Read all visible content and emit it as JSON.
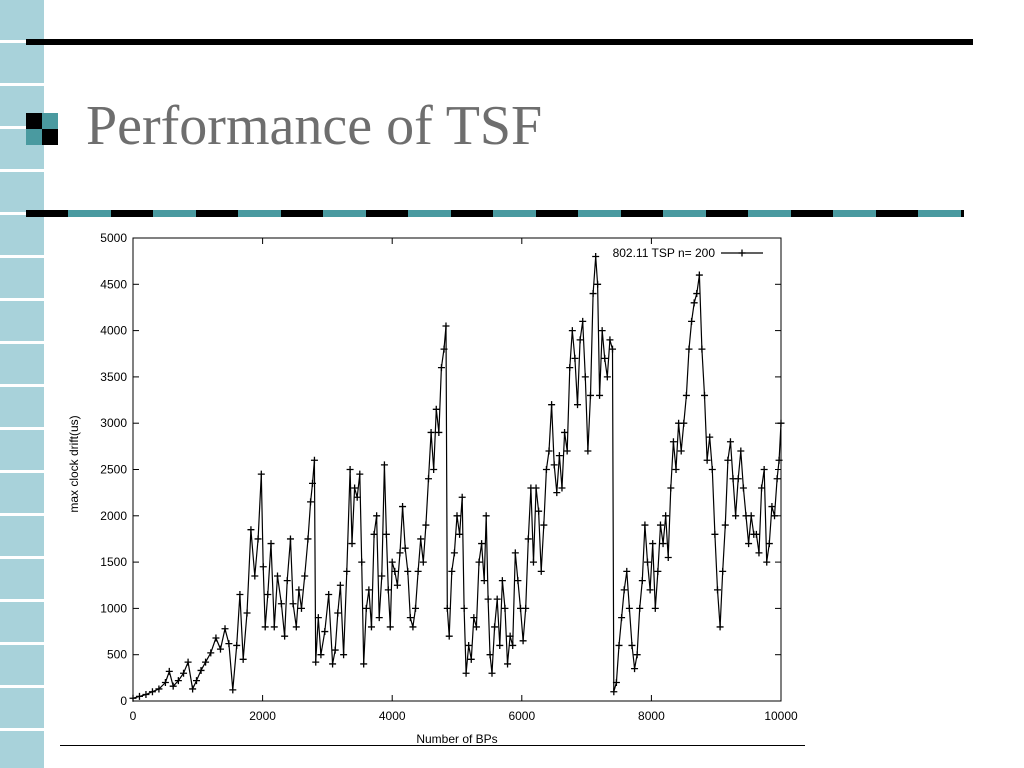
{
  "slide": {
    "title": "Performance of TSF"
  },
  "theme": {
    "accent": "#4a9aa0",
    "stripe_a": "#a8d2da",
    "stripe_b": "#ffffff",
    "rule": "#000000",
    "title_color": "#6e6e6e"
  },
  "chart_data": {
    "type": "line",
    "title": "",
    "xlabel": "Number of BPs",
    "ylabel": "max clock drift(us)",
    "xlim": [
      0,
      10000
    ],
    "ylim": [
      0,
      5000
    ],
    "xticks": [
      0,
      2000,
      4000,
      6000,
      8000,
      10000
    ],
    "yticks": [
      0,
      500,
      1000,
      1500,
      2000,
      2500,
      3000,
      3500,
      4000,
      4500,
      5000
    ],
    "grid": false,
    "legend_position": "top-right",
    "marker": "plus",
    "series": [
      {
        "name": "802.11 TSP n= 200",
        "points": [
          [
            0,
            30
          ],
          [
            100,
            50
          ],
          [
            200,
            70
          ],
          [
            300,
            100
          ],
          [
            400,
            130
          ],
          [
            500,
            200
          ],
          [
            560,
            320
          ],
          [
            620,
            160
          ],
          [
            700,
            220
          ],
          [
            780,
            300
          ],
          [
            850,
            420
          ],
          [
            920,
            130
          ],
          [
            980,
            220
          ],
          [
            1050,
            330
          ],
          [
            1120,
            420
          ],
          [
            1200,
            520
          ],
          [
            1280,
            680
          ],
          [
            1350,
            560
          ],
          [
            1420,
            780
          ],
          [
            1480,
            620
          ],
          [
            1540,
            120
          ],
          [
            1600,
            600
          ],
          [
            1650,
            1150
          ],
          [
            1700,
            450
          ],
          [
            1760,
            950
          ],
          [
            1820,
            1850
          ],
          [
            1880,
            1350
          ],
          [
            1930,
            1750
          ],
          [
            1980,
            2450
          ],
          [
            2010,
            1450
          ],
          [
            2040,
            800
          ],
          [
            2080,
            1150
          ],
          [
            2130,
            1700
          ],
          [
            2180,
            800
          ],
          [
            2230,
            1350
          ],
          [
            2290,
            1050
          ],
          [
            2340,
            700
          ],
          [
            2380,
            1300
          ],
          [
            2430,
            1750
          ],
          [
            2470,
            1050
          ],
          [
            2520,
            800
          ],
          [
            2560,
            1200
          ],
          [
            2600,
            1000
          ],
          [
            2650,
            1350
          ],
          [
            2700,
            1750
          ],
          [
            2740,
            2150
          ],
          [
            2770,
            2350
          ],
          [
            2800,
            2600
          ],
          [
            2820,
            420
          ],
          [
            2860,
            900
          ],
          [
            2900,
            500
          ],
          [
            2960,
            750
          ],
          [
            3020,
            1150
          ],
          [
            3080,
            400
          ],
          [
            3120,
            550
          ],
          [
            3160,
            950
          ],
          [
            3200,
            1250
          ],
          [
            3250,
            500
          ],
          [
            3300,
            1400
          ],
          [
            3350,
            2500
          ],
          [
            3380,
            1700
          ],
          [
            3420,
            2300
          ],
          [
            3460,
            2200
          ],
          [
            3500,
            2450
          ],
          [
            3530,
            1500
          ],
          [
            3560,
            400
          ],
          [
            3600,
            1000
          ],
          [
            3640,
            1200
          ],
          [
            3680,
            800
          ],
          [
            3720,
            1800
          ],
          [
            3760,
            2000
          ],
          [
            3800,
            900
          ],
          [
            3840,
            1350
          ],
          [
            3880,
            2550
          ],
          [
            3910,
            1800
          ],
          [
            3940,
            1200
          ],
          [
            3970,
            800
          ],
          [
            4000,
            1500
          ],
          [
            4040,
            1400
          ],
          [
            4080,
            1250
          ],
          [
            4120,
            1600
          ],
          [
            4160,
            2100
          ],
          [
            4200,
            1650
          ],
          [
            4240,
            1400
          ],
          [
            4280,
            900
          ],
          [
            4320,
            800
          ],
          [
            4360,
            1000
          ],
          [
            4400,
            1400
          ],
          [
            4440,
            1750
          ],
          [
            4480,
            1500
          ],
          [
            4520,
            1900
          ],
          [
            4560,
            2400
          ],
          [
            4600,
            2900
          ],
          [
            4640,
            2500
          ],
          [
            4680,
            3150
          ],
          [
            4720,
            2900
          ],
          [
            4760,
            3600
          ],
          [
            4800,
            3800
          ],
          [
            4830,
            4050
          ],
          [
            4850,
            1000
          ],
          [
            4880,
            700
          ],
          [
            4920,
            1400
          ],
          [
            4960,
            1600
          ],
          [
            5000,
            2000
          ],
          [
            5040,
            1800
          ],
          [
            5080,
            2200
          ],
          [
            5110,
            1000
          ],
          [
            5140,
            300
          ],
          [
            5180,
            600
          ],
          [
            5220,
            450
          ],
          [
            5260,
            900
          ],
          [
            5300,
            800
          ],
          [
            5340,
            1500
          ],
          [
            5380,
            1700
          ],
          [
            5420,
            1300
          ],
          [
            5450,
            2000
          ],
          [
            5480,
            1100
          ],
          [
            5510,
            500
          ],
          [
            5540,
            300
          ],
          [
            5580,
            800
          ],
          [
            5620,
            1100
          ],
          [
            5660,
            600
          ],
          [
            5700,
            1300
          ],
          [
            5740,
            1000
          ],
          [
            5780,
            400
          ],
          [
            5820,
            700
          ],
          [
            5860,
            600
          ],
          [
            5900,
            1600
          ],
          [
            5940,
            1300
          ],
          [
            5980,
            1000
          ],
          [
            6020,
            650
          ],
          [
            6060,
            1000
          ],
          [
            6100,
            1750
          ],
          [
            6140,
            2300
          ],
          [
            6180,
            1500
          ],
          [
            6220,
            2300
          ],
          [
            6260,
            2050
          ],
          [
            6300,
            1400
          ],
          [
            6340,
            1900
          ],
          [
            6380,
            2500
          ],
          [
            6420,
            2700
          ],
          [
            6460,
            3200
          ],
          [
            6500,
            2550
          ],
          [
            6540,
            2250
          ],
          [
            6580,
            2650
          ],
          [
            6620,
            2300
          ],
          [
            6660,
            2900
          ],
          [
            6700,
            2700
          ],
          [
            6740,
            3600
          ],
          [
            6780,
            4000
          ],
          [
            6820,
            3700
          ],
          [
            6860,
            3200
          ],
          [
            6900,
            3900
          ],
          [
            6940,
            4100
          ],
          [
            6980,
            3500
          ],
          [
            7020,
            2700
          ],
          [
            7060,
            3300
          ],
          [
            7100,
            4400
          ],
          [
            7140,
            4800
          ],
          [
            7170,
            4500
          ],
          [
            7200,
            3300
          ],
          [
            7240,
            4000
          ],
          [
            7280,
            3700
          ],
          [
            7320,
            3500
          ],
          [
            7360,
            3900
          ],
          [
            7400,
            3800
          ],
          [
            7420,
            100
          ],
          [
            7460,
            200
          ],
          [
            7500,
            600
          ],
          [
            7540,
            900
          ],
          [
            7580,
            1200
          ],
          [
            7620,
            1400
          ],
          [
            7660,
            1000
          ],
          [
            7700,
            600
          ],
          [
            7740,
            350
          ],
          [
            7780,
            500
          ],
          [
            7820,
            1000
          ],
          [
            7860,
            1300
          ],
          [
            7900,
            1900
          ],
          [
            7940,
            1500
          ],
          [
            7980,
            1200
          ],
          [
            8020,
            1700
          ],
          [
            8060,
            1000
          ],
          [
            8100,
            1400
          ],
          [
            8140,
            1900
          ],
          [
            8180,
            1700
          ],
          [
            8220,
            2000
          ],
          [
            8260,
            1550
          ],
          [
            8300,
            2300
          ],
          [
            8340,
            2800
          ],
          [
            8380,
            2500
          ],
          [
            8420,
            3000
          ],
          [
            8460,
            2700
          ],
          [
            8500,
            3000
          ],
          [
            8540,
            3300
          ],
          [
            8580,
            3800
          ],
          [
            8620,
            4100
          ],
          [
            8660,
            4300
          ],
          [
            8700,
            4400
          ],
          [
            8740,
            4600
          ],
          [
            8780,
            3800
          ],
          [
            8820,
            3300
          ],
          [
            8860,
            2600
          ],
          [
            8900,
            2850
          ],
          [
            8940,
            2500
          ],
          [
            8980,
            1800
          ],
          [
            9020,
            1200
          ],
          [
            9060,
            800
          ],
          [
            9100,
            1400
          ],
          [
            9140,
            1900
          ],
          [
            9180,
            2600
          ],
          [
            9220,
            2800
          ],
          [
            9260,
            2400
          ],
          [
            9300,
            2000
          ],
          [
            9340,
            2400
          ],
          [
            9380,
            2700
          ],
          [
            9420,
            2300
          ],
          [
            9460,
            2000
          ],
          [
            9500,
            1700
          ],
          [
            9540,
            2000
          ],
          [
            9580,
            1800
          ],
          [
            9620,
            1800
          ],
          [
            9660,
            1600
          ],
          [
            9700,
            2300
          ],
          [
            9740,
            2500
          ],
          [
            9780,
            1500
          ],
          [
            9820,
            1700
          ],
          [
            9860,
            2100
          ],
          [
            9900,
            2000
          ],
          [
            9940,
            2400
          ],
          [
            9970,
            2600
          ],
          [
            10000,
            3000
          ]
        ]
      }
    ]
  }
}
